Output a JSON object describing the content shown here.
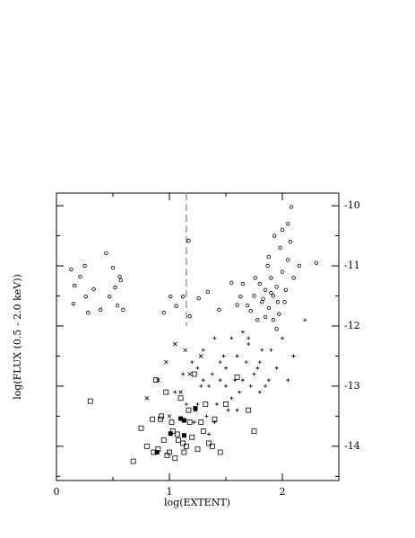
{
  "chart_data": {
    "type": "scatter",
    "x_label": "log(EXTENT)",
    "y_label": "log(FLUX (0.5 - 2.0 keV))",
    "xlim": [
      0,
      2.5
    ],
    "ylim": [
      -14.57,
      -9.79
    ],
    "xticks": [
      0,
      1,
      2
    ],
    "yticks": [
      -10,
      -11,
      -12,
      -13,
      -14
    ],
    "xminorticks": [
      0.5,
      1.5
    ],
    "yminorticks": [
      -10.5,
      -11.5,
      -12.5,
      -13.5,
      -14.5
    ],
    "vline": {
      "x": 1.15,
      "ymin": -12,
      "color": "#999999"
    },
    "series": [
      {
        "marker": "circle",
        "color": "#000000",
        "x": [
          0.13,
          0.16,
          0.15,
          0.21,
          0.26,
          0.28,
          0.33,
          0.39,
          0.44,
          0.47,
          0.52,
          0.54,
          0.56,
          0.57,
          0.59,
          0.25,
          0.5,
          0.95,
          1.01,
          1.06,
          1.12,
          1.17,
          1.18,
          1.26,
          1.34,
          1.44,
          1.55,
          1.63,
          1.69,
          1.75,
          1.8,
          1.82,
          1.85,
          1.88,
          1.9,
          1.92,
          1.95,
          1.97,
          2.0,
          2.02,
          2.05,
          1.98,
          1.93,
          2.0,
          2.05,
          2.08,
          1.87,
          1.78,
          1.72,
          1.85,
          1.95,
          2.1,
          2.15,
          2.3,
          1.65,
          1.6,
          1.9,
          1.83,
          1.96,
          2.03,
          1.88,
          1.92,
          2.07,
          1.76
        ],
        "y": [
          -11.06,
          -11.33,
          -11.63,
          -11.18,
          -11.51,
          -11.78,
          -11.39,
          -11.73,
          -10.79,
          -11.51,
          -11.36,
          -11.66,
          -11.18,
          -11.24,
          -11.73,
          -11.0,
          -11.03,
          -11.78,
          -11.51,
          -11.67,
          -11.51,
          -10.58,
          -11.84,
          -11.54,
          -11.43,
          -11.73,
          -11.28,
          -11.51,
          -11.66,
          -11.5,
          -11.3,
          -11.6,
          -11.4,
          -11.7,
          -11.2,
          -11.5,
          -11.35,
          -11.8,
          -11.1,
          -11.6,
          -10.9,
          -10.7,
          -10.5,
          -10.4,
          -10.3,
          -10.02,
          -11.0,
          -11.9,
          -11.75,
          -11.85,
          -12.05,
          -11.2,
          -11.0,
          -10.95,
          -11.3,
          -11.65,
          -11.45,
          -11.55,
          -11.6,
          -11.4,
          -10.85,
          -11.9,
          -10.6,
          -11.2
        ]
      },
      {
        "marker": "plus",
        "color": "#000000",
        "x": [
          1.05,
          1.12,
          1.2,
          1.25,
          1.3,
          1.35,
          1.4,
          1.45,
          1.5,
          1.55,
          1.6,
          1.65,
          1.7,
          1.75,
          1.8,
          1.85,
          1.9,
          1.95,
          2.0,
          2.05,
          2.1,
          2.2,
          1.22,
          1.28,
          1.33,
          1.38,
          1.42,
          1.48,
          1.52,
          1.58,
          1.62,
          1.68,
          1.72,
          1.78,
          1.82,
          1.88,
          1.3,
          1.4,
          1.5,
          1.6,
          1.7,
          1.8,
          1.45,
          1.55,
          1.35,
          1.25,
          1.15,
          1.65
        ],
        "y": [
          -13.1,
          -12.8,
          -12.6,
          -13.3,
          -12.4,
          -13.0,
          -12.2,
          -12.9,
          -12.7,
          -13.2,
          -12.5,
          -12.9,
          -12.3,
          -12.8,
          -12.6,
          -13.0,
          -12.4,
          -12.7,
          -12.2,
          -12.9,
          -12.5,
          -11.9,
          -13.6,
          -13.0,
          -13.5,
          -12.8,
          -13.3,
          -12.5,
          -13.4,
          -12.9,
          -13.1,
          -12.6,
          -13.0,
          -12.7,
          -12.4,
          -12.9,
          -12.9,
          -13.6,
          -13.0,
          -13.4,
          -12.2,
          -13.1,
          -12.6,
          -12.2,
          -13.8,
          -12.7,
          -13.3,
          -12.1
        ]
      },
      {
        "marker": "cross",
        "color": "#000000",
        "x": [
          0.8,
          0.9,
          0.97,
          1.05,
          1.1,
          1.18,
          1.23,
          1.28,
          1.0,
          1.14
        ],
        "y": [
          -13.2,
          -12.9,
          -12.6,
          -12.3,
          -13.1,
          -12.8,
          -13.4,
          -12.5,
          -13.5,
          -12.4
        ]
      },
      {
        "marker": "square",
        "color": "#000000",
        "x": [
          0.3,
          0.68,
          0.75,
          0.8,
          0.85,
          0.88,
          0.9,
          0.93,
          0.95,
          0.97,
          1.0,
          1.02,
          1.05,
          1.07,
          1.1,
          1.12,
          1.15,
          1.17,
          1.2,
          1.22,
          1.25,
          1.28,
          1.3,
          1.35,
          1.4,
          1.45,
          1.5,
          1.6,
          1.7,
          1.75,
          0.86,
          0.98,
          1.08,
          1.18,
          1.32,
          0.92,
          1.03,
          1.13,
          1.38
        ],
        "y": [
          -13.25,
          -14.25,
          -13.7,
          -14.0,
          -13.55,
          -12.9,
          -14.05,
          -13.5,
          -13.9,
          -13.1,
          -14.1,
          -13.6,
          -14.2,
          -13.8,
          -13.2,
          -13.95,
          -14.0,
          -13.4,
          -13.85,
          -12.8,
          -14.05,
          -13.6,
          -13.75,
          -13.95,
          -13.55,
          -14.1,
          -13.3,
          -12.85,
          -13.4,
          -13.75,
          -14.1,
          -14.15,
          -13.9,
          -13.6,
          -13.3,
          -13.55,
          -13.75,
          -14.1,
          -14.0
        ]
      },
      {
        "marker": "filled-square",
        "color": "#000000",
        "x": [
          0.89,
          1.01,
          1.1,
          1.13,
          1.13,
          1.23
        ],
        "y": [
          -14.1,
          -13.79,
          -13.54,
          -13.57,
          -13.82,
          -13.37
        ]
      }
    ]
  }
}
